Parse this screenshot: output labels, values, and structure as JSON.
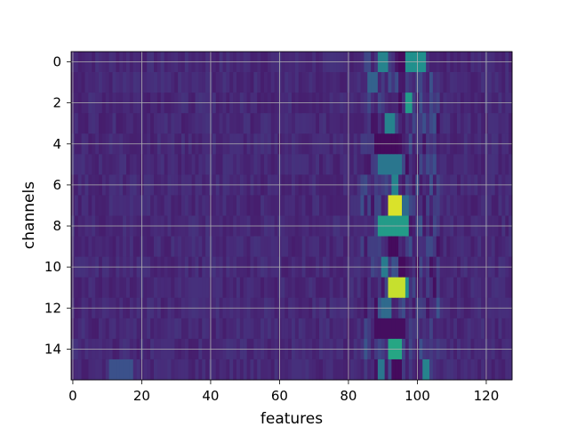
{
  "chart_data": {
    "type": "heatmap",
    "title": "",
    "xlabel": "features",
    "ylabel": "channels",
    "colormap": "viridis",
    "value_range": [
      0,
      1
    ],
    "xlim": [
      -0.5,
      127.5
    ],
    "ylim": [
      15.5,
      -0.5
    ],
    "x_ticks": [
      0,
      20,
      40,
      60,
      80,
      100,
      120
    ],
    "y_ticks": [
      0,
      2,
      4,
      6,
      8,
      10,
      12,
      14
    ],
    "grid": true,
    "n_features": 128,
    "n_channels": 16,
    "background_level": 0.12,
    "note_values": "approximate intensities (0-1) of distinct features read from the image; unlisted cells are near background level",
    "hotspots": [
      {
        "channel": 0,
        "features": [
          89,
          90,
          91
        ],
        "value": 0.45
      },
      {
        "channel": 0,
        "features": [
          95,
          96
        ],
        "value": 0.03
      },
      {
        "channel": 0,
        "features": [
          97,
          98,
          99,
          100,
          101,
          102
        ],
        "value": 0.5
      },
      {
        "channel": 1,
        "features": [
          86,
          87,
          88
        ],
        "value": 0.32
      },
      {
        "channel": 2,
        "features": [
          97,
          98
        ],
        "value": 0.55
      },
      {
        "channel": 2,
        "features": [
          95
        ],
        "value": 0.03
      },
      {
        "channel": 3,
        "features": [
          91,
          92,
          93
        ],
        "value": 0.45
      },
      {
        "channel": 4,
        "features": [
          88,
          89,
          90,
          91,
          92,
          93,
          94
        ],
        "value": 0.03
      },
      {
        "channel": 5,
        "features": [
          89,
          90,
          91,
          92,
          93,
          94,
          95
        ],
        "value": 0.4
      },
      {
        "channel": 6,
        "features": [
          93,
          94
        ],
        "value": 0.45
      },
      {
        "channel": 7,
        "features": [
          92,
          93,
          94,
          95
        ],
        "value": 0.95
      },
      {
        "channel": 7,
        "features": [
          96,
          97
        ],
        "value": 0.35
      },
      {
        "channel": 8,
        "features": [
          89,
          90,
          91,
          92,
          93,
          94,
          95,
          96,
          97
        ],
        "value": 0.55
      },
      {
        "channel": 9,
        "features": [
          92,
          93,
          94
        ],
        "value": 0.03
      },
      {
        "channel": 10,
        "features": [
          90,
          91
        ],
        "value": 0.42
      },
      {
        "channel": 10,
        "features": [
          95,
          96
        ],
        "value": 0.03
      },
      {
        "channel": 11,
        "features": [
          92,
          93,
          94,
          95,
          96
        ],
        "value": 0.92
      },
      {
        "channel": 11,
        "features": [
          97
        ],
        "value": 0.5
      },
      {
        "channel": 12,
        "features": [
          90,
          91,
          92
        ],
        "value": 0.35
      },
      {
        "channel": 13,
        "features": [
          88,
          89,
          90,
          91,
          92,
          93,
          94,
          95,
          96
        ],
        "value": 0.04
      },
      {
        "channel": 14,
        "features": [
          92,
          93,
          94,
          95
        ],
        "value": 0.6
      },
      {
        "channel": 15,
        "features": [
          89,
          90
        ],
        "value": 0.4
      },
      {
        "channel": 15,
        "features": [
          93,
          94,
          95
        ],
        "value": 0.03
      },
      {
        "channel": 15,
        "features": [
          102,
          103
        ],
        "value": 0.45
      },
      {
        "channel": 15,
        "features": [
          11,
          12,
          13,
          14,
          15,
          16,
          17
        ],
        "value": 0.25
      }
    ]
  }
}
